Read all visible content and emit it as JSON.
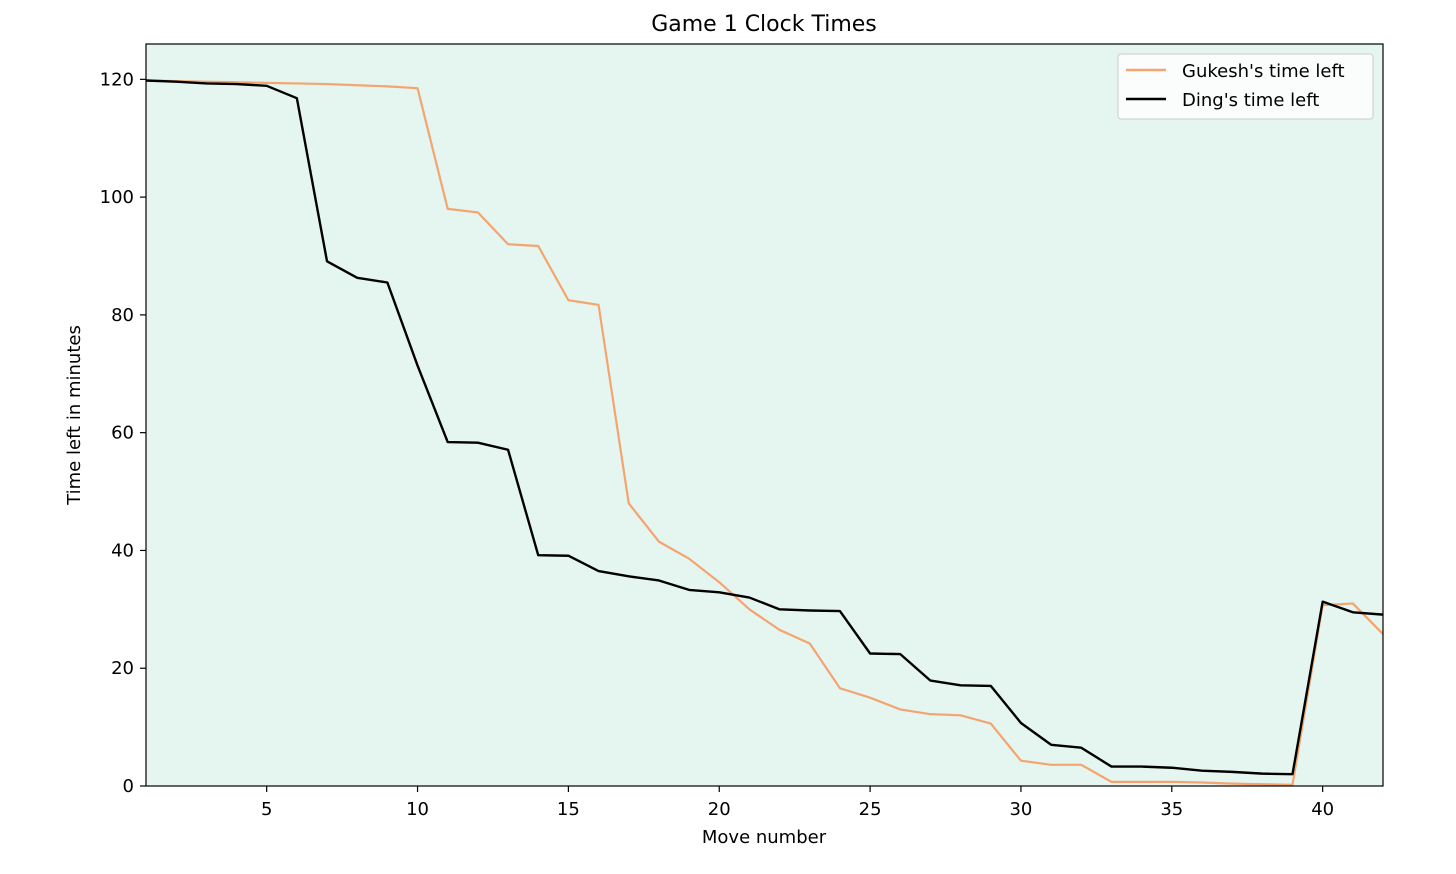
{
  "chart_data": {
    "type": "line",
    "title": "Game 1 Clock Times",
    "xlabel": "Move number",
    "ylabel": "Time left in minutes",
    "xlim": [
      1,
      42
    ],
    "ylim": [
      0,
      126
    ],
    "xticks": [
      5,
      10,
      15,
      20,
      25,
      30,
      35,
      40
    ],
    "yticks": [
      0,
      20,
      40,
      60,
      80,
      100,
      120
    ],
    "grid": false,
    "legend_position": "top-right",
    "background_color": "#e5f5f0",
    "x": [
      1,
      2,
      3,
      4,
      5,
      6,
      7,
      8,
      9,
      10,
      11,
      12,
      13,
      14,
      15,
      16,
      17,
      18,
      19,
      20,
      21,
      22,
      23,
      24,
      25,
      26,
      27,
      28,
      29,
      30,
      31,
      32,
      33,
      34,
      35,
      36,
      37,
      38,
      39,
      40,
      41,
      42
    ],
    "series": [
      {
        "name": "Gukesh's time left",
        "color": "#f4a56f",
        "values": [
          119.8,
          119.7,
          119.6,
          119.5,
          119.4,
          119.3,
          119.2,
          119.0,
          118.8,
          118.5,
          98.0,
          97.4,
          92.0,
          91.7,
          82.5,
          81.7,
          48.0,
          41.5,
          38.6,
          34.6,
          30.0,
          26.5,
          24.2,
          16.6,
          15.0,
          13.0,
          12.2,
          12.0,
          10.6,
          4.3,
          3.6,
          3.6,
          0.7,
          0.7,
          0.7,
          0.6,
          0.4,
          0.3,
          0.2,
          30.7,
          31.0,
          25.8
        ]
      },
      {
        "name": "Ding's time left",
        "color": "#000000",
        "values": [
          119.8,
          119.6,
          119.3,
          119.2,
          118.9,
          116.8,
          89.1,
          86.3,
          85.5,
          71.4,
          58.4,
          58.3,
          57.1,
          39.2,
          39.1,
          36.5,
          35.6,
          34.9,
          33.3,
          32.9,
          32.0,
          30.0,
          29.8,
          29.7,
          22.5,
          22.4,
          17.9,
          17.1,
          17.0,
          10.7,
          7.0,
          6.5,
          3.3,
          3.3,
          3.1,
          2.6,
          2.4,
          2.1,
          2.0,
          31.3,
          29.5,
          29.1
        ]
      }
    ]
  }
}
